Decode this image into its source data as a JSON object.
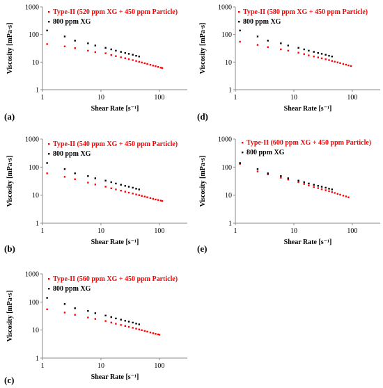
{
  "chart_data": [
    {
      "type": "scatter",
      "panel_label": "(a)",
      "xlabel": "Shear Rate [s⁻¹]",
      "ylabel": "Viscosity [mPa·s]",
      "xscale": "log",
      "yscale": "log",
      "xlim": [
        1,
        300
      ],
      "ylim": [
        1,
        1000
      ],
      "xticks": [
        "1",
        "10",
        "100"
      ],
      "yticks": [
        "1",
        "10",
        "100",
        "1000"
      ],
      "legend_position": "top-right",
      "series": [
        {
          "name": "Type-II (520 ppm XG + 450 ppm Particle)",
          "color": "#ff0000",
          "x": [
            1.2,
            2.4,
            3.6,
            6,
            8,
            12,
            15,
            18,
            22,
            26,
            30,
            35,
            40,
            45,
            50,
            56,
            62,
            70,
            78,
            86,
            95,
            105,
            112
          ],
          "y": [
            45,
            37,
            32,
            26,
            23,
            21,
            18,
            16.5,
            15,
            13.8,
            12.8,
            11.8,
            11,
            10.3,
            9.7,
            9.1,
            8.6,
            8,
            7.5,
            7.1,
            6.7,
            6.3,
            6.1
          ]
        },
        {
          "name": "800 ppm XG",
          "color": "#000000",
          "x": [
            1.2,
            2.4,
            3.6,
            6,
            8,
            12,
            15,
            18,
            22,
            26,
            30,
            35,
            40,
            45
          ],
          "y": [
            140,
            85,
            60,
            48,
            40,
            33,
            29,
            26,
            23.5,
            21.5,
            20,
            18.5,
            17,
            16
          ]
        }
      ]
    },
    {
      "type": "scatter",
      "panel_label": "(d)",
      "xlabel": "Shear Rate [s⁻¹]",
      "ylabel": "Viscosity [mPa·s]",
      "xscale": "log",
      "yscale": "log",
      "xlim": [
        1,
        300
      ],
      "ylim": [
        1,
        1000
      ],
      "xticks": [
        "1",
        "10",
        "100"
      ],
      "yticks": [
        "1",
        "10",
        "100",
        "1000"
      ],
      "legend_position": "top-right",
      "series": [
        {
          "name": "Type-II (580 ppm XG + 450 ppm Particle)",
          "color": "#ff0000",
          "x": [
            1.2,
            2.4,
            3.6,
            6,
            8,
            12,
            15,
            18,
            22,
            26,
            30,
            35,
            40,
            45,
            50,
            56,
            62,
            70,
            78,
            86,
            95
          ],
          "y": [
            55,
            42,
            35,
            29,
            26,
            22,
            19.5,
            17.5,
            16,
            14.8,
            13.7,
            12.7,
            11.8,
            11,
            10.4,
            9.8,
            9.2,
            8.6,
            8.1,
            7.6,
            7.2
          ]
        },
        {
          "name": "800 ppm XG",
          "color": "#000000",
          "x": [
            1.2,
            2.4,
            3.6,
            6,
            8,
            12,
            15,
            18,
            22,
            26,
            30,
            35,
            40,
            45
          ],
          "y": [
            140,
            85,
            60,
            48,
            40,
            33,
            29,
            26,
            23.5,
            21.5,
            20,
            18.5,
            17,
            16
          ]
        }
      ]
    },
    {
      "type": "scatter",
      "panel_label": "(b)",
      "xlabel": "Shear Rate [s⁻¹]",
      "ylabel": "Viscosity [mPa·s]",
      "xscale": "log",
      "yscale": "log",
      "xlim": [
        1,
        300
      ],
      "ylim": [
        1,
        1000
      ],
      "xticks": [
        "1",
        "10",
        "100"
      ],
      "yticks": [
        "1",
        "10",
        "100",
        "1000"
      ],
      "legend_position": "top-right",
      "series": [
        {
          "name": "Type-II (540 ppm XG + 450 ppm Particle)",
          "color": "#ff0000",
          "x": [
            1.2,
            2.4,
            3.6,
            6,
            8,
            12,
            15,
            18,
            22,
            26,
            30,
            35,
            40,
            45,
            50,
            56,
            62,
            70,
            78,
            86,
            95,
            105,
            112
          ],
          "y": [
            60,
            45,
            37,
            28,
            24,
            20,
            17.5,
            16,
            14.5,
            13.3,
            12.3,
            11.4,
            10.6,
            10,
            9.4,
            8.9,
            8.4,
            7.9,
            7.4,
            7,
            6.7,
            6.4,
            6.2
          ]
        },
        {
          "name": "800 ppm XG",
          "color": "#000000",
          "x": [
            1.2,
            2.4,
            3.6,
            6,
            8,
            12,
            15,
            18,
            22,
            26,
            30,
            35,
            40,
            45
          ],
          "y": [
            140,
            85,
            60,
            48,
            40,
            33,
            29,
            26,
            23.5,
            21.5,
            20,
            18.5,
            17,
            16
          ]
        }
      ]
    },
    {
      "type": "scatter",
      "panel_label": "(e)",
      "xlabel": "Shear Rate [s⁻¹]",
      "ylabel": "Viscosity [mPa·s]",
      "xscale": "log",
      "yscale": "log",
      "xlim": [
        1,
        300
      ],
      "ylim": [
        1,
        1000
      ],
      "xticks": [
        "1",
        "10",
        "100"
      ],
      "yticks": [
        "1",
        "10",
        "100",
        "1000"
      ],
      "legend_position": "top-right",
      "series": [
        {
          "name": "Type-II (600 ppm XG + 450 ppm Particle)",
          "color": "#ff0000",
          "x": [
            1.2,
            2.4,
            3.6,
            6,
            8,
            12,
            15,
            18,
            22,
            26,
            30,
            35,
            40,
            45,
            50,
            56,
            62,
            70,
            78,
            86
          ],
          "y": [
            130,
            70,
            55,
            42,
            36,
            29,
            25,
            22,
            19.5,
            17.8,
            16.3,
            15,
            13.8,
            12.8,
            12,
            11.1,
            10.4,
            9.6,
            9,
            8.4
          ]
        },
        {
          "name": "800 ppm XG",
          "color": "#000000",
          "x": [
            1.2,
            2.4,
            3.6,
            6,
            8,
            12,
            15,
            18,
            22,
            26,
            30,
            35,
            40,
            45
          ],
          "y": [
            140,
            85,
            60,
            48,
            40,
            33,
            29,
            26,
            23.5,
            21.5,
            20,
            18.5,
            17,
            16
          ]
        }
      ]
    },
    {
      "type": "scatter",
      "panel_label": "(c)",
      "xlabel": "Shear Rate [s⁻¹]",
      "ylabel": "Viscosity [mPa·s]",
      "xscale": "log",
      "yscale": "log",
      "xlim": [
        1,
        300
      ],
      "ylim": [
        1,
        1000
      ],
      "xticks": [
        "1",
        "10",
        "100"
      ],
      "yticks": [
        "1",
        "10",
        "100",
        "1000"
      ],
      "legend_position": "top-right",
      "series": [
        {
          "name": "Type-II (560 ppm XG + 450 ppm Particle)",
          "color": "#ff0000",
          "x": [
            1.2,
            2.4,
            3.6,
            6,
            8,
            12,
            15,
            18,
            22,
            26,
            30,
            35,
            40,
            45,
            50,
            56,
            62,
            70,
            78,
            86,
            95,
            100
          ],
          "y": [
            55,
            42,
            35,
            28,
            25,
            21,
            18.5,
            16.8,
            15.2,
            14,
            13,
            12,
            11.2,
            10.5,
            9.9,
            9.3,
            8.8,
            8.2,
            7.7,
            7.3,
            7,
            6.8
          ]
        },
        {
          "name": "800 ppm XG",
          "color": "#000000",
          "x": [
            1.2,
            2.4,
            3.6,
            6,
            8,
            12,
            15,
            18,
            22,
            26,
            30,
            35,
            40,
            45
          ],
          "y": [
            140,
            85,
            60,
            48,
            40,
            33,
            29,
            26,
            23.5,
            21.5,
            20,
            18.5,
            17,
            16
          ]
        }
      ]
    }
  ]
}
